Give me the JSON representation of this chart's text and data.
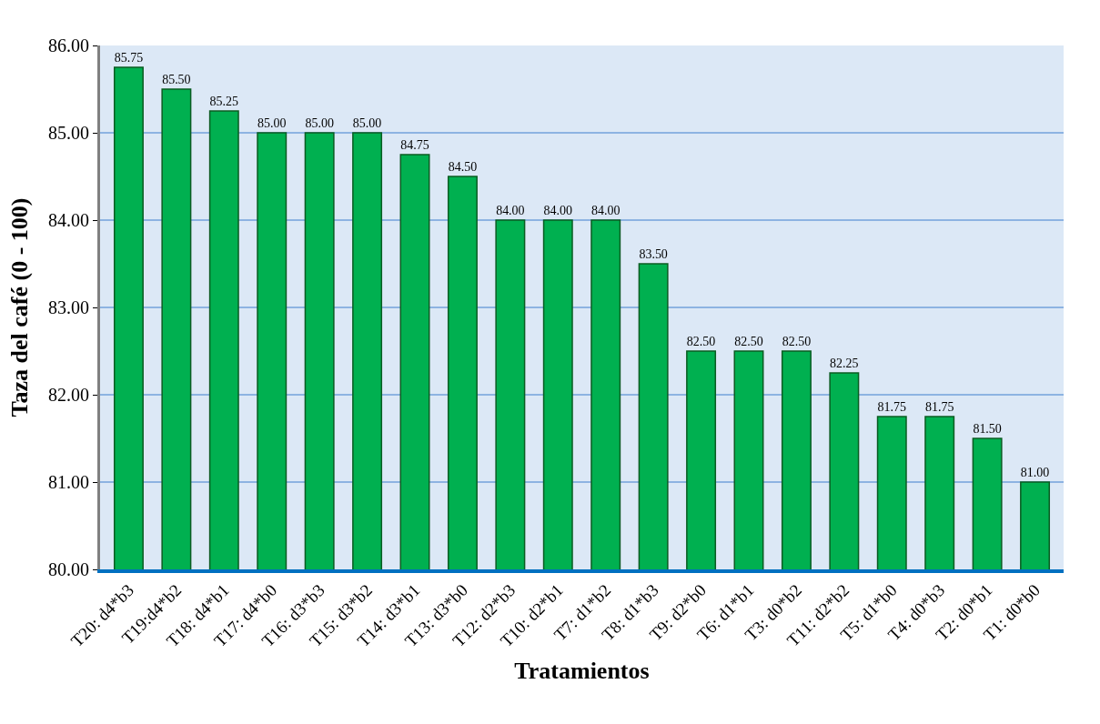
{
  "chart_data": {
    "type": "bar",
    "xlabel": "Tratamientos",
    "ylabel": "Taza del café (0 - 100)",
    "categories": [
      "T20: d4*b3",
      "T19:d4*b2",
      "T18: d4*b1",
      "T17: d4*b0",
      "T16: d3*b3",
      "T15: d3*b2",
      "T14: d3*b1",
      "T13: d3*b0",
      "T12: d2*b3",
      "T10: d2*b1",
      "T7: d1*b2",
      "T8: d1*b3",
      "T9: d2*b0",
      "T6: d1*b1",
      "T3: d0*b2",
      "T11: d2*b2",
      "T5: d1*b0",
      "T4: d0*b3",
      "T2: d0*b1",
      "T1: d0*b0"
    ],
    "values": [
      85.75,
      85.5,
      85.25,
      85,
      85,
      85,
      84.75,
      84.5,
      84,
      84,
      84,
      83.5,
      82.5,
      82.5,
      82.5,
      82.25,
      81.75,
      81.75,
      81.5,
      81
    ],
    "value_labels": [
      "85.75",
      "85.50",
      "85.25",
      "85.00",
      "85.00",
      "85.00",
      "84.75",
      "84.50",
      "84.00",
      "84.00",
      "84.00",
      "83.50",
      "82.50",
      "82.50",
      "82.50",
      "82.25",
      "81.75",
      "81.75",
      "81.50",
      "81.00"
    ],
    "color": "#00b050",
    "ylim": [
      80,
      86
    ],
    "yticks": [
      {
        "value": 80,
        "label": "80.00"
      },
      {
        "value": 81,
        "label": "81.00"
      },
      {
        "value": 82,
        "label": "82.00"
      },
      {
        "value": 83,
        "label": "83.00"
      },
      {
        "value": 84,
        "label": "84.00"
      },
      {
        "value": 85,
        "label": "85.00"
      },
      {
        "value": 86,
        "label": "86.00"
      }
    ],
    "grid": "y",
    "legend": false
  }
}
